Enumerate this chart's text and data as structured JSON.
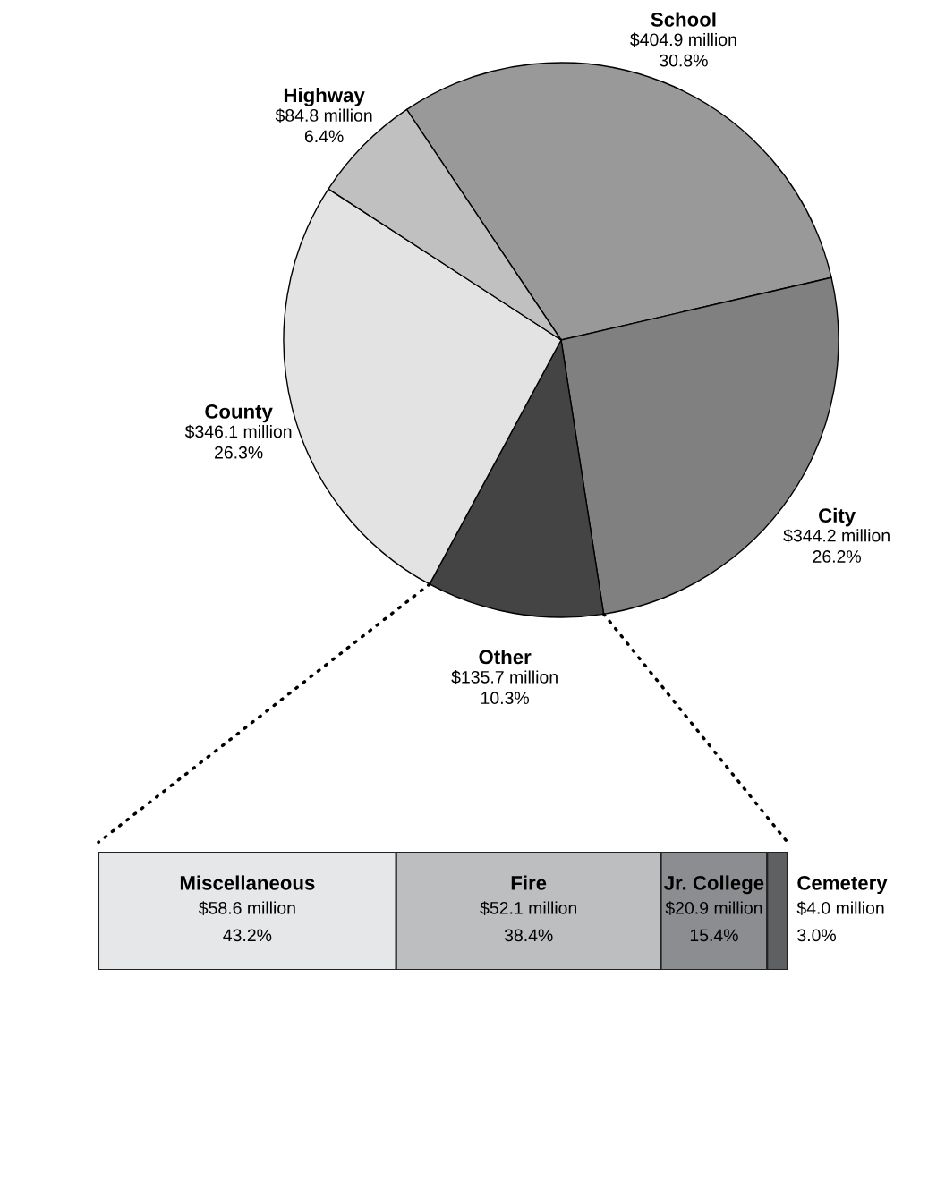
{
  "chart_data": [
    {
      "type": "pie",
      "categories": [
        "School",
        "City",
        "Other",
        "County",
        "Highway"
      ],
      "values": [
        404.9,
        344.2,
        135.7,
        346.1,
        84.8
      ],
      "value_labels": [
        "$404.9 million",
        "$344.2 million",
        "$135.7 million",
        "$346.1 million",
        "$84.8 million"
      ],
      "annotations": [
        "30.8%",
        "26.2%",
        "10.3%",
        "26.3%",
        "6.4%"
      ],
      "colors": [
        "#999999",
        "#808080",
        "#444444",
        "#e3e3e3",
        "#c0c0c0"
      ]
    },
    {
      "type": "bar",
      "orientation": "horizontal",
      "stacked": true,
      "categories": [
        null
      ],
      "tick_labels": false,
      "annotations": [
        "43.2%",
        "38.4%",
        "15.4%",
        "3.0%"
      ],
      "series": [
        {
          "name": "Miscellaneous",
          "color": "#e6e7e8",
          "values": [
            58.6
          ],
          "value_labels": [
            "$58.6 million"
          ]
        },
        {
          "name": "Fire",
          "color": "#bcbec0",
          "values": [
            52.1
          ],
          "value_labels": [
            "$52.1 million"
          ]
        },
        {
          "name": "Jr. College",
          "color": "#8c8d90",
          "values": [
            20.9
          ],
          "value_labels": [
            "$20.9 million"
          ]
        },
        {
          "name": "Cemetery",
          "color": "#5f6062",
          "values": [
            4.0
          ],
          "value_labels": [
            "$4.0 million"
          ]
        }
      ]
    }
  ]
}
